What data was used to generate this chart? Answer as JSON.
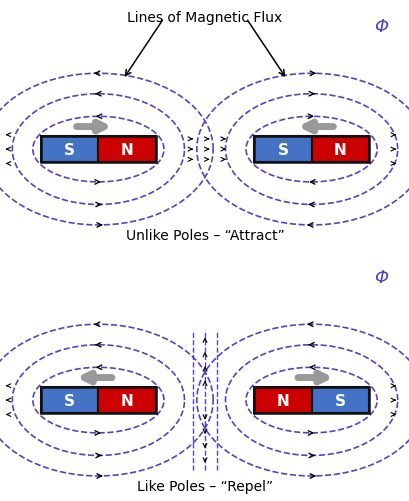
{
  "bg_color": "#ffffff",
  "flux_line_color": "#5544bb",
  "arrow_color": "#000000",
  "magnet_outline": "#111111",
  "s_color": "#4472c4",
  "n_color": "#cc0000",
  "magnet_text_color": "#ffffff",
  "top_title": "Lines of Magnetic Flux",
  "top_caption": "Unlike Poles – “Attract”",
  "bottom_caption": "Like Poles – “Repel”",
  "phi_color": "#5544bb",
  "phi_symbol": "Φ"
}
